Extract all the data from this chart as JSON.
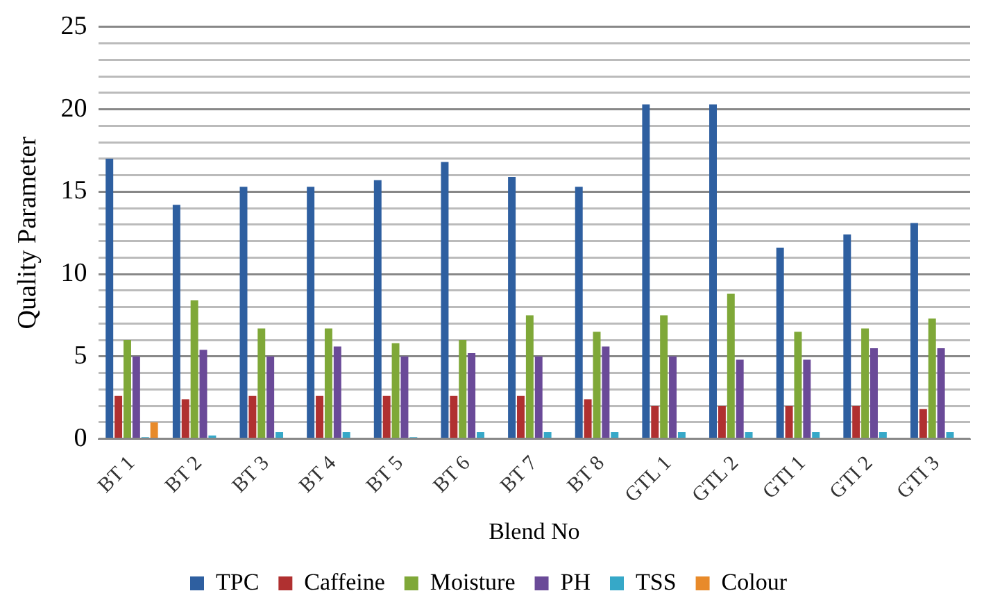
{
  "chart_data": {
    "type": "bar",
    "xlabel": "Blend No",
    "ylabel": "Quality Parameter",
    "categories": [
      "BT 1",
      "BT 2",
      "BT 3",
      "BT 4",
      "BT 5",
      "BT 6",
      "BT 7",
      "BT 8",
      "GTL 1",
      "GTL 2",
      "GTI 1",
      "GTI 2",
      "GTI 3"
    ],
    "series": [
      {
        "name": "TPC",
        "color": "#2e5fa0",
        "values": [
          17,
          14.2,
          15.3,
          15.3,
          15.7,
          16.8,
          15.9,
          15.3,
          20.3,
          20.3,
          11.6,
          12.4,
          13.1
        ]
      },
      {
        "name": "Caffeine",
        "color": "#b03030",
        "values": [
          2.6,
          2.4,
          2.6,
          2.6,
          2.6,
          2.6,
          2.6,
          2.4,
          2,
          2,
          2,
          2,
          1.8
        ]
      },
      {
        "name": "Moisture",
        "color": "#7fa838",
        "values": [
          6,
          8.4,
          6.7,
          6.7,
          5.8,
          6,
          7.5,
          6.5,
          7.5,
          8.8,
          6.5,
          6.7,
          7.3
        ]
      },
      {
        "name": "PH",
        "color": "#6a4a98",
        "values": [
          5,
          5.4,
          5,
          5.6,
          5,
          5.2,
          5,
          5.6,
          5,
          4.8,
          4.8,
          5.5,
          5.5
        ]
      },
      {
        "name": "TSS",
        "color": "#36a8c8",
        "values": [
          0.1,
          0.2,
          0.4,
          0.4,
          0.1,
          0.4,
          0.4,
          0.4,
          0.4,
          0.4,
          0.4,
          0.4,
          0.4
        ]
      },
      {
        "name": "Colour",
        "color": "#e88a2a",
        "values": [
          1,
          0,
          0,
          0,
          0,
          0,
          0,
          0,
          0,
          0,
          0,
          0,
          0
        ]
      }
    ],
    "ylim": [
      0,
      25
    ],
    "yticks": [
      0,
      {
        "value": 1,
        "label": null
      },
      {
        "value": 2,
        "label": null
      },
      {
        "value": 3,
        "label": null
      },
      {
        "value": 4,
        "label": null
      },
      5,
      {
        "value": 6,
        "label": null
      },
      {
        "value": 7,
        "label": null
      },
      {
        "value": 8,
        "label": null
      },
      {
        "value": 9,
        "label": null
      },
      10,
      {
        "value": 11,
        "label": null
      },
      {
        "value": 12,
        "label": null
      },
      {
        "value": 13,
        "label": null
      },
      {
        "value": 14,
        "label": null
      },
      15,
      {
        "value": 16,
        "label": null
      },
      {
        "value": 17,
        "label": null
      },
      {
        "value": 18,
        "label": null
      },
      {
        "value": 19,
        "label": null
      },
      20,
      {
        "value": 21,
        "label": null
      },
      {
        "value": 22,
        "label": null
      },
      {
        "value": 23,
        "label": null
      },
      {
        "value": 24,
        "label": null
      },
      25
    ],
    "grid": "y",
    "legend": "bottom"
  }
}
